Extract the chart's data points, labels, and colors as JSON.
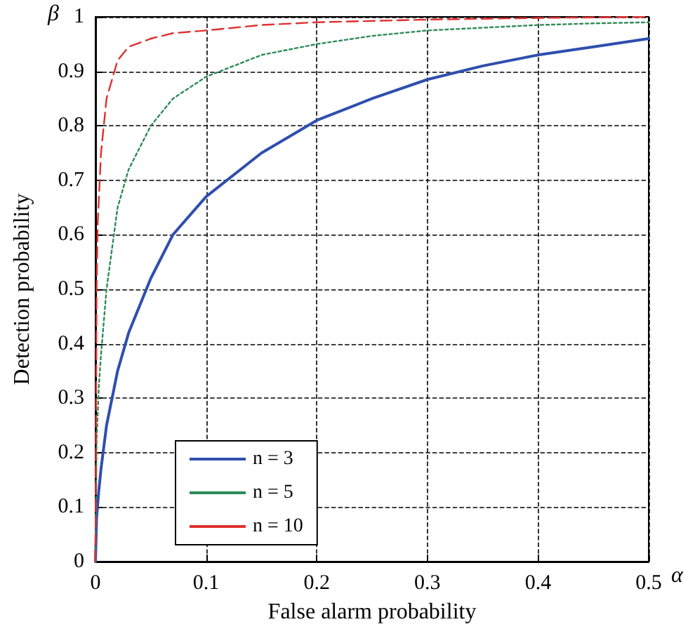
{
  "chart_data": {
    "type": "line",
    "xlabel": "False alarm probability",
    "ylabel": "Detection probability",
    "annotations": [
      "β",
      "α"
    ],
    "xlim": [
      0,
      0.5
    ],
    "ylim": [
      0,
      1
    ],
    "xticks": [
      0,
      0.1,
      0.2,
      0.3,
      0.4,
      0.5
    ],
    "yticks": [
      0,
      0.1,
      0.2,
      0.3,
      0.4,
      0.5,
      0.6,
      0.7,
      0.8,
      0.9,
      1
    ],
    "grid": true,
    "legend": "bottom left",
    "marker": "none",
    "series": [
      {
        "name": "n = 3",
        "color": "#2f4fae",
        "line_style": "solid",
        "x": [
          0,
          0.001,
          0.003,
          0.005,
          0.01,
          0.02,
          0.03,
          0.05,
          0.07,
          0.1,
          0.15,
          0.2,
          0.25,
          0.3,
          0.35,
          0.4,
          0.45,
          0.5
        ],
        "values": [
          0,
          0.08,
          0.13,
          0.17,
          0.25,
          0.35,
          0.42,
          0.52,
          0.6,
          0.67,
          0.75,
          0.81,
          0.85,
          0.885,
          0.91,
          0.93,
          0.945,
          0.96
        ]
      },
      {
        "name": "n = 5",
        "color": "#2e8b57",
        "line_style": "dotted",
        "x": [
          0,
          0.001,
          0.003,
          0.005,
          0.01,
          0.02,
          0.03,
          0.05,
          0.07,
          0.1,
          0.15,
          0.2,
          0.25,
          0.3,
          0.35,
          0.4,
          0.45,
          0.5
        ],
        "values": [
          0,
          0.22,
          0.32,
          0.38,
          0.5,
          0.65,
          0.72,
          0.8,
          0.85,
          0.89,
          0.93,
          0.95,
          0.965,
          0.975,
          0.98,
          0.985,
          0.988,
          0.99
        ]
      },
      {
        "name": "n = 10",
        "color": "#e03030",
        "line_style": "dashed",
        "x": [
          0,
          0.001,
          0.002,
          0.005,
          0.01,
          0.02,
          0.03,
          0.05,
          0.07,
          0.1,
          0.15,
          0.2,
          0.3,
          0.4,
          0.5
        ],
        "values": [
          0,
          0.5,
          0.62,
          0.75,
          0.85,
          0.92,
          0.945,
          0.96,
          0.97,
          0.975,
          0.985,
          0.99,
          0.995,
          0.998,
          1
        ]
      }
    ]
  }
}
